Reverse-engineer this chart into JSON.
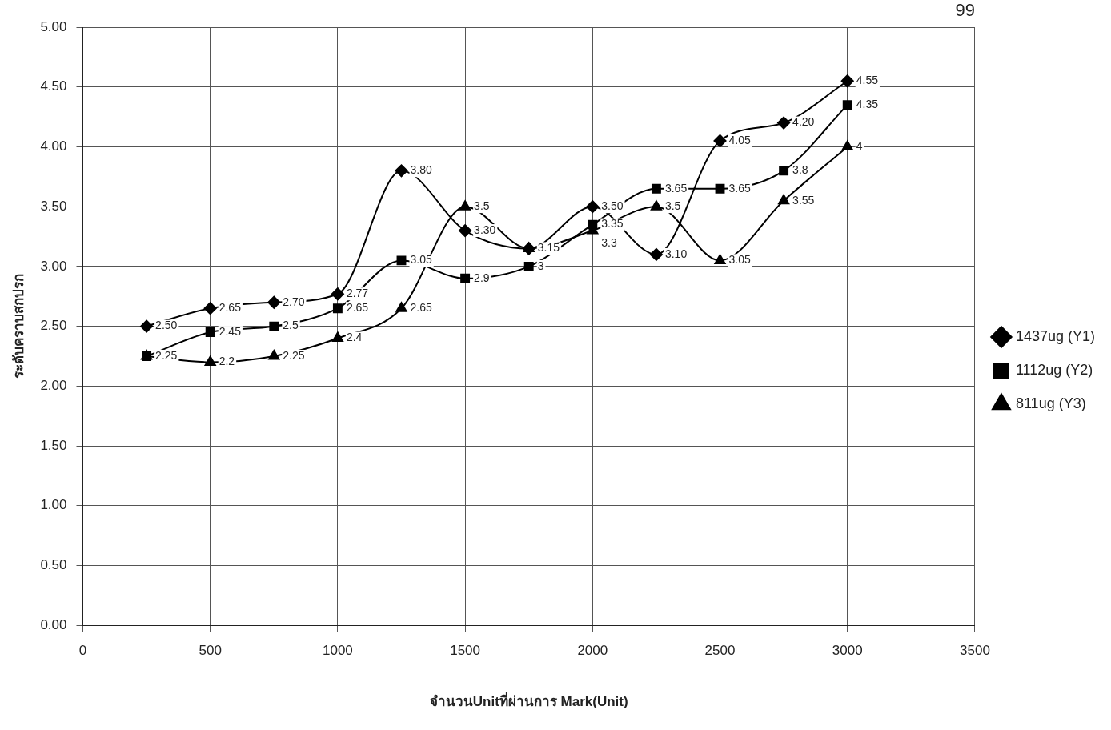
{
  "chart_data": {
    "type": "line",
    "xlabel": "จำนวนUnitที่ผ่านการ Mark(Unit)",
    "ylabel": "ระดับคราบสกปรก",
    "x": [
      250,
      500,
      750,
      1000,
      1250,
      1500,
      1750,
      2000,
      2250,
      2500,
      2750,
      3000
    ],
    "series": [
      {
        "name": "1437ug (Y1)",
        "color": "#000000",
        "marker": "diamond",
        "values": [
          2.5,
          2.65,
          2.7,
          2.77,
          3.8,
          3.3,
          3.15,
          3.5,
          3.1,
          4.05,
          4.2,
          4.55
        ],
        "value_labels": [
          "2.50",
          "2.65",
          "2.70",
          "2.77",
          "3.80",
          "3.30",
          "3.15",
          "3.50",
          "3.10",
          "4.05",
          "4.20",
          "4.55"
        ]
      },
      {
        "name": "1112ug (Y2)",
        "color": "#000000",
        "marker": "square",
        "values": [
          2.25,
          2.45,
          2.5,
          2.65,
          3.05,
          2.9,
          3,
          3.35,
          3.65,
          3.65,
          3.8,
          4.35
        ],
        "value_labels": [
          "2.25",
          "2.45",
          "2.5",
          "2.65",
          "3.05",
          "2.9",
          "3",
          "3.35",
          "3.65",
          "3.65",
          "3.8",
          "4.35"
        ]
      },
      {
        "name": "811ug (Y3)",
        "color": "#000000",
        "marker": "triangle",
        "values": [
          2.25,
          2.2,
          2.25,
          2.4,
          2.65,
          3.5,
          3.15,
          3.3,
          3.5,
          3.05,
          3.55,
          4
        ],
        "value_labels": [
          null,
          "2.2",
          "2.25",
          "2.4",
          "2.65",
          "3.5",
          null,
          "3.3",
          "3.5",
          "3.05",
          "3.55",
          "4"
        ]
      }
    ],
    "xlim": [
      0,
      3500
    ],
    "xticks": [
      0,
      500,
      1000,
      1500,
      2000,
      2500,
      3000,
      3500
    ],
    "ylim": [
      0,
      5
    ],
    "yticks": [
      {
        "value": 0,
        "label": "0.00"
      },
      {
        "value": 0.5,
        "label": "0.50"
      },
      {
        "value": 1,
        "label": "1.00"
      },
      {
        "value": 1.5,
        "label": "1.50"
      },
      {
        "value": 2,
        "label": "2.00"
      },
      {
        "value": 2.5,
        "label": "2.50"
      },
      {
        "value": 3,
        "label": "3.00"
      },
      {
        "value": 3.5,
        "label": "3.50"
      },
      {
        "value": 4,
        "label": "4.00"
      },
      {
        "value": 4.5,
        "label": "4.50"
      },
      {
        "value": 5,
        "label": "5.00"
      }
    ],
    "grid": true,
    "legend": "right",
    "line_style": "solid",
    "annotations": [
      "99"
    ]
  }
}
